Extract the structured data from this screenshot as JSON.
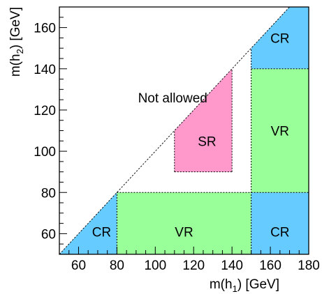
{
  "chart_data": {
    "type": "area",
    "xlabel_parts": [
      "m(h",
      "1",
      ") [GeV]"
    ],
    "ylabel_parts": [
      "m(h",
      "2",
      ") [GeV]"
    ],
    "xlim": [
      50,
      180
    ],
    "ylim": [
      50,
      170
    ],
    "x_ticks": [
      60,
      80,
      100,
      120,
      140,
      160,
      180
    ],
    "y_ticks": [
      60,
      80,
      100,
      120,
      140,
      160
    ],
    "diagonal": {
      "from": [
        50,
        50
      ],
      "to": [
        170,
        170
      ]
    },
    "regions": [
      {
        "label": "CR",
        "color": "#66ccff",
        "polygon": [
          [
            50,
            50
          ],
          [
            80,
            50
          ],
          [
            80,
            80
          ]
        ]
      },
      {
        "label": "VR",
        "color": "#99ff99",
        "polygon": [
          [
            80,
            50
          ],
          [
            150,
            50
          ],
          [
            150,
            80
          ],
          [
            80,
            80
          ]
        ]
      },
      {
        "label": "CR",
        "color": "#66ccff",
        "polygon": [
          [
            150,
            50
          ],
          [
            180,
            50
          ],
          [
            180,
            80
          ],
          [
            150,
            80
          ]
        ]
      },
      {
        "label": "VR",
        "color": "#99ff99",
        "polygon": [
          [
            150,
            80
          ],
          [
            180,
            80
          ],
          [
            180,
            140
          ],
          [
            150,
            140
          ]
        ]
      },
      {
        "label": "CR",
        "color": "#66ccff",
        "polygon": [
          [
            150,
            140
          ],
          [
            180,
            140
          ],
          [
            180,
            170
          ],
          [
            170,
            170
          ],
          [
            150,
            150
          ]
        ]
      },
      {
        "label": "SR",
        "color": "#ff99cc",
        "polygon": [
          [
            110,
            90
          ],
          [
            140,
            90
          ],
          [
            140,
            140
          ],
          [
            110,
            110
          ]
        ]
      }
    ],
    "region_labels": [
      {
        "text": "CR",
        "x": 72,
        "y": 61
      },
      {
        "text": "VR",
        "x": 115,
        "y": 61
      },
      {
        "text": "CR",
        "x": 165,
        "y": 61
      },
      {
        "text": "VR",
        "x": 165,
        "y": 110
      },
      {
        "text": "CR",
        "x": 165,
        "y": 155
      },
      {
        "text": "SR",
        "x": 127,
        "y": 105
      }
    ],
    "annotations": [
      {
        "text": "Not allowed",
        "x": 91,
        "y": 126
      }
    ],
    "dashed_lines": [
      [
        [
          80,
          50
        ],
        [
          80,
          80
        ]
      ],
      [
        [
          80,
          80
        ],
        [
          150,
          80
        ]
      ],
      [
        [
          150,
          50
        ],
        [
          150,
          150
        ]
      ],
      [
        [
          150,
          80
        ],
        [
          180,
          80
        ]
      ],
      [
        [
          150,
          140
        ],
        [
          180,
          140
        ]
      ],
      [
        [
          110,
          90
        ],
        [
          110,
          110
        ]
      ],
      [
        [
          110,
          90
        ],
        [
          140,
          90
        ]
      ],
      [
        [
          140,
          90
        ],
        [
          140,
          140
        ]
      ]
    ]
  }
}
